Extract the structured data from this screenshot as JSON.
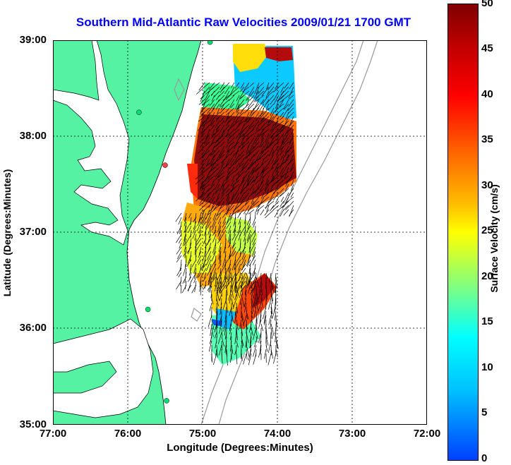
{
  "title": "Southern Mid-Atlantic Raw Velocities 2009/01/21 1700 GMT",
  "x_axis": {
    "label": "Longitude (Degrees:Minutes)",
    "ticks": [
      "77:00",
      "76:00",
      "75:00",
      "74:00",
      "73:00",
      "72:00"
    ]
  },
  "y_axis": {
    "label": "Latitude (Degrees:Minutes)",
    "ticks": [
      "39:00",
      "38:00",
      "37:00",
      "36:00",
      "35:00"
    ]
  },
  "colorbar": {
    "label": "Surface Velocity (cm/s)",
    "ticks": [
      "50",
      "45",
      "40",
      "35",
      "30",
      "25",
      "20",
      "15",
      "10",
      "5",
      "0"
    ],
    "range": [
      0,
      50
    ]
  },
  "colors": {
    "land": "#55f2a4",
    "water": "#ffffff",
    "title": "#0000ff",
    "stations": "#00e070",
    "station_alt": "#ff4040"
  },
  "map": {
    "lon_range": [
      -77,
      -72
    ],
    "lat_range": [
      35,
      39
    ],
    "grid": true,
    "stations": [
      {
        "lon": -74.9,
        "lat": 38.98,
        "color": "#00e070"
      },
      {
        "lon": -75.85,
        "lat": 38.25,
        "color": "#00e070"
      },
      {
        "lon": -75.5,
        "lat": 37.7,
        "color": "#ff4040"
      },
      {
        "lon": -75.73,
        "lat": 36.2,
        "color": "#00e070"
      },
      {
        "lon": -75.48,
        "lat": 35.25,
        "color": "#00e070"
      }
    ]
  }
}
